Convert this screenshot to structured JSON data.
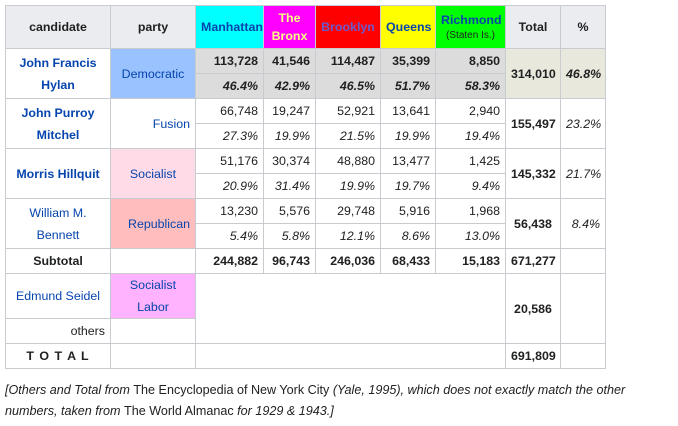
{
  "headers": {
    "candidate": "candidate",
    "party": "party",
    "boroughs": [
      {
        "label": "Manhattan",
        "sub": "",
        "bg": "#00ffff",
        "color": "#0645ad"
      },
      {
        "label": "The Bronx",
        "sub": "",
        "bg": "#ff00ff",
        "color": "#ffff80"
      },
      {
        "label": "Brooklyn",
        "sub": "",
        "bg": "#ff0000",
        "color": "#6a5acd"
      },
      {
        "label": "Queens",
        "sub": "",
        "bg": "#ffff00",
        "color": "#0645ad"
      },
      {
        "label": "Richmond",
        "sub": "(Staten Is.)",
        "bg": "#00ff00",
        "color": "#0645ad"
      }
    ],
    "total": "Total",
    "pct": "%"
  },
  "candidates": [
    {
      "name": "John Francis Hylan",
      "party": "Democratic",
      "party_bg": "#99c2ff",
      "votes": [
        "113,728",
        "41,546",
        "114,487",
        "35,399",
        "8,850"
      ],
      "pcts": [
        "46.4%",
        "42.9%",
        "46.5%",
        "51.7%",
        "58.3%"
      ],
      "total": "314,010",
      "pct": "46.8%"
    },
    {
      "name": "John Purroy Mitchel",
      "party": "Fusion",
      "party_bg": "#ffffff",
      "votes": [
        "66,748",
        "19,247",
        "52,921",
        "13,641",
        "2,940"
      ],
      "pcts": [
        "27.3%",
        "19.9%",
        "21.5%",
        "19.9%",
        "19.4%"
      ],
      "total": "155,497",
      "pct": "23.2%"
    },
    {
      "name": "Morris Hillquit",
      "party": "Socialist",
      "party_bg": "#ffdbe8",
      "votes": [
        "51,176",
        "30,374",
        "48,880",
        "13,477",
        "1,425"
      ],
      "pcts": [
        "20.9%",
        "31.4%",
        "19.9%",
        "19.7%",
        "9.4%"
      ],
      "total": "145,332",
      "pct": "21.7%"
    },
    {
      "name": "William M. Bennett",
      "party": "Republican",
      "party_bg": "#ffbdbd",
      "votes": [
        "13,230",
        "5,576",
        "29,748",
        "5,916",
        "1,968"
      ],
      "pcts": [
        "5.4%",
        "5.8%",
        "12.1%",
        "8.6%",
        "13.0%"
      ],
      "total": "56,438",
      "pct": "8.4%"
    }
  ],
  "subtotal": {
    "label": "Subtotal",
    "values": [
      "244,882",
      "96,743",
      "246,036",
      "68,433",
      "15,183"
    ],
    "total": "671,277"
  },
  "seidel": {
    "name": "Edmund Seidel",
    "party": "Socialist Labor",
    "party_bg": "#ffb3ff",
    "total": "20,586"
  },
  "others": {
    "label": "others"
  },
  "grand_total": {
    "label": "T O T A L",
    "value": "691,809"
  },
  "caption": {
    "p1": "[Others and Total from ",
    "p2": "The Encyclopedia of New York City",
    "p3": " (Yale, 1995), which does not exactly match the other numbers, taken from ",
    "p4": "The World Almanac",
    "p5": " for 1929 & 1943.]"
  }
}
